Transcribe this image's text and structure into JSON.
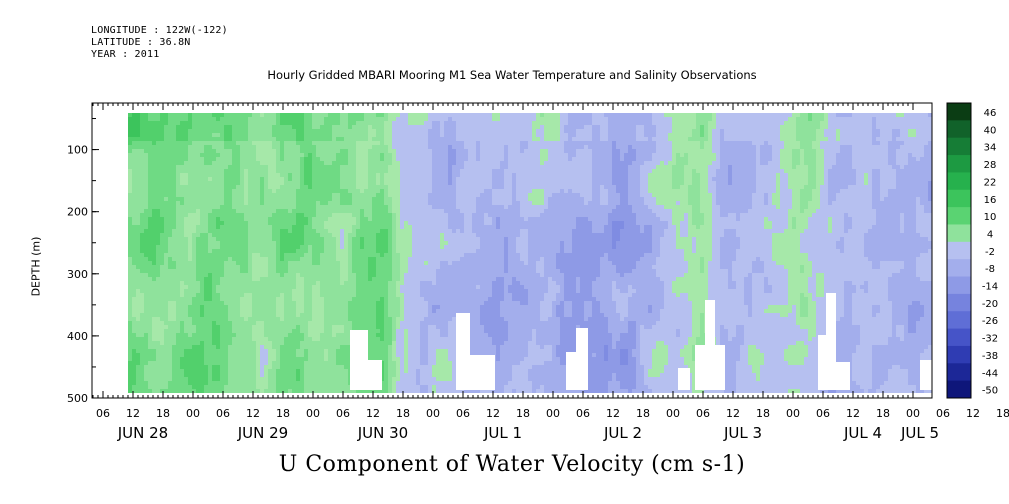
{
  "header": {
    "longitude": "LONGITUDE : 122W(-122)",
    "latitude": "LATITUDE : 36.8N",
    "year": "YEAR : 2011"
  },
  "chart_data": {
    "type": "heatmap",
    "title": "Hourly Gridded MBARI Mooring M1 Sea Water Temperature and Salinity Observations",
    "xlabel": "U Component of Water Velocity (cm s-1)",
    "ylabel": "DEPTH (m)",
    "ylim": [
      500,
      0
    ],
    "yticks": [
      100,
      200,
      300,
      400,
      500
    ],
    "hour_ticks": [
      "06",
      "12",
      "18",
      "00",
      "06",
      "12",
      "18",
      "00",
      "06",
      "12",
      "18",
      "00",
      "06",
      "12",
      "18",
      "00",
      "06",
      "12",
      "18",
      "00",
      "06",
      "12",
      "18",
      "00",
      "06",
      "12",
      "18",
      "00",
      "06",
      "12",
      "18",
      "00"
    ],
    "day_labels": [
      "JUN 28",
      "JUN 29",
      "JUN 30",
      "JUL  1",
      "JUL  2",
      "JUL  3",
      "JUL  4",
      "JUL  5"
    ],
    "colorbar": {
      "labels": [
        "46",
        "40",
        "34",
        "28",
        "22",
        "16",
        "10",
        "4",
        "-2",
        "-8",
        "-14",
        "-20",
        "-26",
        "-32",
        "-38",
        "-44",
        "-50"
      ],
      "colors": [
        "#0b3d14",
        "#11622a",
        "#167d36",
        "#1d9a42",
        "#26b14d",
        "#3cc45c",
        "#5ad372",
        "#8fe29c",
        "#b6c0f0",
        "#a3aeec",
        "#8e9ae6",
        "#7683de",
        "#5f6ed6",
        "#4654c8",
        "#2f3cb3",
        "#1c2797",
        "#0e167a"
      ]
    },
    "grid": false,
    "legend_position": "right"
  }
}
